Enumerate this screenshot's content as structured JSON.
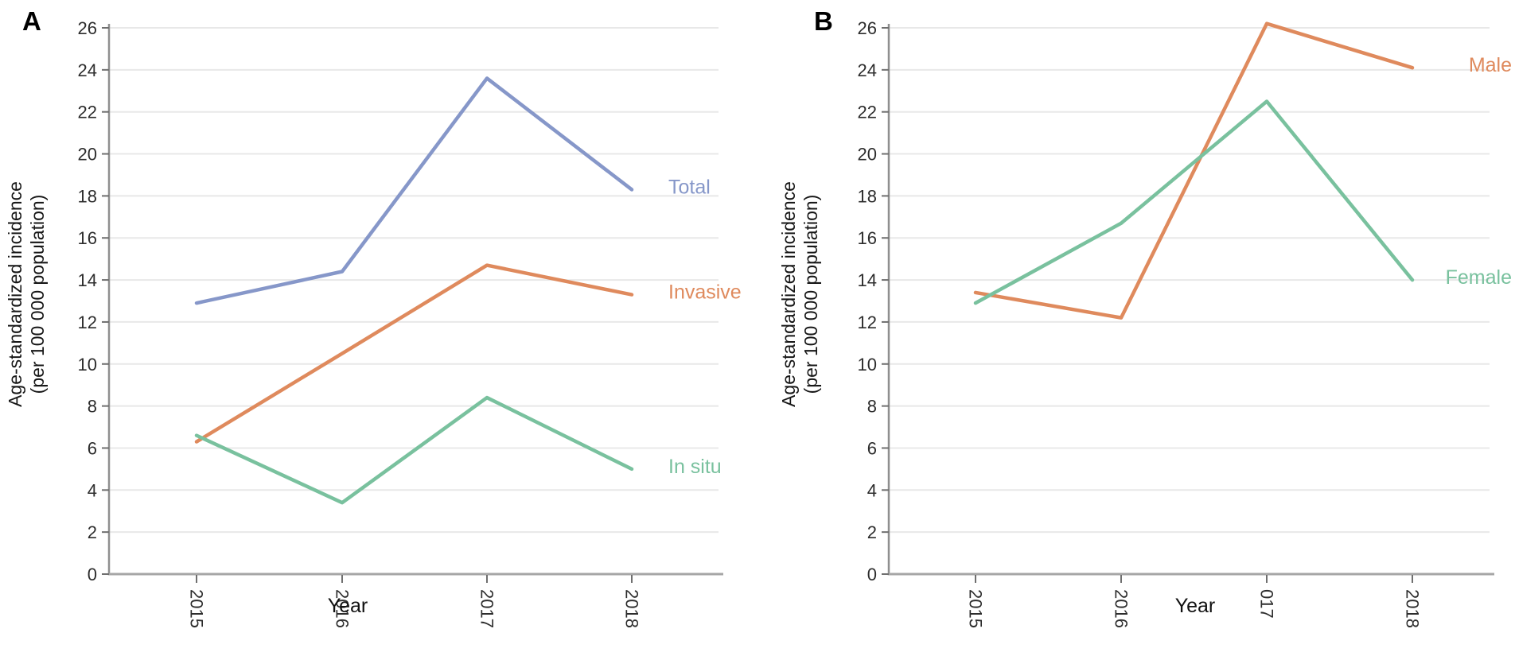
{
  "panels": [
    {
      "letter": "A",
      "y_title_line1": "Age-standardized incidence",
      "y_title_line2": "(per 100 000 population)",
      "x_title": "Year"
    },
    {
      "letter": "B",
      "y_title_line1": "Age-standardized incidence",
      "y_title_line2": "(per 100 000 population)",
      "x_title": "Year"
    }
  ],
  "colors": {
    "blue": "#8697C9",
    "orange": "#DF8A5D",
    "green": "#79C19E",
    "gridline": "#e8e8e8",
    "x_axis": "#a6a6a6",
    "y_axis": "#8f8f8f",
    "tick": "#6f6f6f",
    "tick_label": "#2d2d2d"
  },
  "chart_data": [
    {
      "type": "line",
      "panel": "A",
      "title": "",
      "x": [
        "2015",
        "2016",
        "2017",
        "2018"
      ],
      "xlabel": "Year",
      "ylabel": "Age-standardized incidence (per 100 000 population)",
      "ylim": [
        0,
        26
      ],
      "ytick_interval": 2,
      "yticks": [
        0,
        2,
        4,
        6,
        8,
        10,
        12,
        14,
        16,
        18,
        20,
        22,
        24,
        26
      ],
      "grid": "horizontal",
      "legend_position": "labels-at-line-end-right",
      "series": [
        {
          "name": "Total",
          "color": "#8697C9",
          "values": [
            12.9,
            14.4,
            23.6,
            18.3
          ]
        },
        {
          "name": "Invasive",
          "color": "#DF8A5D",
          "values": [
            6.3,
            10.5,
            14.7,
            13.3
          ]
        },
        {
          "name": "In situ",
          "color": "#79C19E",
          "values": [
            6.6,
            3.4,
            8.4,
            5.0
          ]
        }
      ]
    },
    {
      "type": "line",
      "panel": "B",
      "title": "",
      "x": [
        "2015",
        "2016",
        "017",
        "2018"
      ],
      "xlabel": "Year",
      "ylabel": "Age-standardized incidence (per 100 000 population)",
      "ylim": [
        0,
        26
      ],
      "ytick_interval": 2,
      "yticks": [
        0,
        2,
        4,
        6,
        8,
        10,
        12,
        14,
        16,
        18,
        20,
        22,
        24,
        26
      ],
      "grid": "horizontal",
      "legend_position": "labels-at-line-end-right",
      "series": [
        {
          "name": "Male",
          "color": "#DF8A5D",
          "values": [
            13.4,
            12.2,
            26.2,
            24.1
          ]
        },
        {
          "name": "Female",
          "color": "#79C19E",
          "values": [
            12.9,
            16.7,
            22.5,
            14.0
          ]
        }
      ]
    }
  ]
}
